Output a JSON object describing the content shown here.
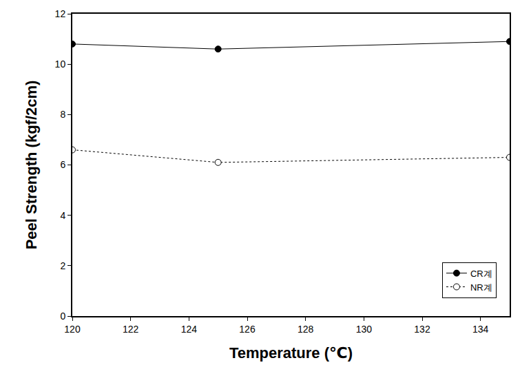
{
  "chart_data": {
    "type": "line",
    "x_label": "Temperature (℃)",
    "y_label": "Peel Strength (kgf/2cm)",
    "series": [
      {
        "name": "CR계",
        "color": "#000000",
        "marker": "circle",
        "line_style": "solid",
        "x": [
          120,
          125,
          135
        ],
        "values": [
          10.8,
          10.6,
          10.9
        ]
      },
      {
        "name": "NR계",
        "color": "#000000",
        "marker": "circle-open",
        "line_style": "dot",
        "x": [
          120,
          125,
          135
        ],
        "values": [
          6.6,
          6.1,
          6.3
        ]
      }
    ],
    "xlim": [
      120,
      135
    ],
    "xticks": [
      120,
      122,
      124,
      126,
      128,
      130,
      132,
      134
    ],
    "ylim": [
      0,
      12
    ],
    "yticks": [
      0,
      2,
      4,
      6,
      8,
      10,
      12
    ],
    "grid": false,
    "legend": "bottom right"
  }
}
